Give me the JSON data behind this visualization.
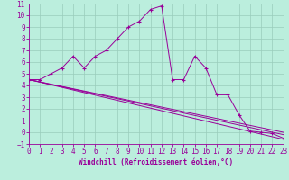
{
  "xlabel": "Windchill (Refroidissement éolien,°C)",
  "xlim": [
    0,
    23
  ],
  "ylim": [
    -1,
    11
  ],
  "xticks": [
    0,
    1,
    2,
    3,
    4,
    5,
    6,
    7,
    8,
    9,
    10,
    11,
    12,
    13,
    14,
    15,
    16,
    17,
    18,
    19,
    20,
    21,
    22,
    23
  ],
  "yticks": [
    -1,
    0,
    1,
    2,
    3,
    4,
    5,
    6,
    7,
    8,
    9,
    10,
    11
  ],
  "line_color": "#990099",
  "bg_color": "#bbeedd",
  "grid_color": "#99ccbb",
  "line1_x": [
    0,
    1,
    2,
    3,
    4,
    5,
    6,
    7,
    8,
    9,
    10,
    11,
    12,
    13,
    14,
    15,
    16,
    17,
    18,
    19,
    20,
    21,
    22,
    23
  ],
  "line1_y": [
    4.5,
    4.5,
    5.0,
    5.5,
    6.5,
    5.5,
    6.5,
    7.0,
    8.0,
    9.0,
    9.5,
    10.5,
    10.8,
    4.5,
    4.5,
    6.5,
    5.5,
    3.2,
    3.2,
    1.5,
    0.1,
    0.0,
    -0.1,
    -0.5
  ],
  "line2_x": [
    0,
    23
  ],
  "line2_y": [
    4.5,
    -0.6
  ],
  "line3_x": [
    0,
    23
  ],
  "line3_y": [
    4.5,
    -0.2
  ],
  "line4_x": [
    0,
    23
  ],
  "line4_y": [
    4.5,
    0.0
  ],
  "tick_fontsize": 5.5,
  "xlabel_fontsize": 5.5,
  "linewidth": 0.7,
  "marker_size": 2.5
}
